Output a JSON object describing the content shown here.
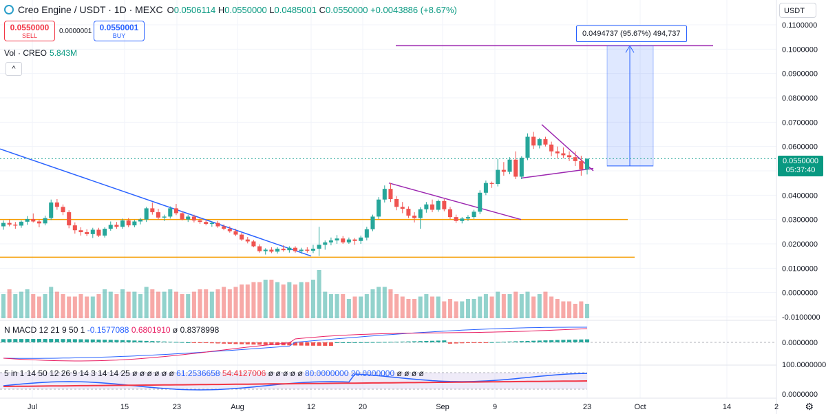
{
  "header": {
    "symbol": "Creo Engine / USDT · 1D · MEXC",
    "open_label": "O",
    "open": "0.0506114",
    "high_label": "H",
    "high": "0.0550000",
    "low_label": "L",
    "low": "0.0485001",
    "close_label": "C",
    "close": "0.0550000",
    "change": "+0.0043886 (+8.67%)"
  },
  "trade": {
    "sell_price": "0.0550000",
    "sell_label": "SELL",
    "spread": "0.0000001",
    "buy_price": "0.0550001",
    "buy_label": "BUY"
  },
  "volume": {
    "label": "Vol · CREO",
    "value": "5.843M"
  },
  "collapse_label": "^",
  "currency": "USDT",
  "measure_label": "0.0494737 (95.67%) 494,737",
  "last_price": {
    "price": "0.0550000",
    "countdown": "05:37:40"
  },
  "macd": {
    "label": "N MACD 12 21 9 50 1",
    "v1": "-0.1577088",
    "v2": "0.6801910",
    "v3": "ø 0.8378998"
  },
  "stoch": {
    "label": "5 in 1 14 50 12 26 9 14 3 14 14 25 ø ø ø ø ø ø",
    "v1": "61.2536658",
    "v2": "54.4127006",
    "mid": "ø ø ø ø ø",
    "v3": "80.0000000",
    "v4": "20.0000000",
    "tail": "ø ø ø ø"
  },
  "price_axis": [
    "0.1100000",
    "0.1000000",
    "0.0900000",
    "0.0800000",
    "0.0700000",
    "0.0600000",
    "0.0500000",
    "0.0400000",
    "0.0300000",
    "0.0200000",
    "0.0100000",
    "0.0000000",
    "-0.0100000"
  ],
  "macd_axis": [
    "0.0000000"
  ],
  "stoch_axis": [
    "100.0000000",
    "0.0000000"
  ],
  "time_axis": [
    "Jul",
    "15",
    "23",
    "Aug",
    "12",
    "20",
    "Sep",
    "9",
    "23",
    "Oct",
    "14",
    "2"
  ],
  "colors": {
    "up": "#26a69a",
    "down": "#ef5350",
    "orange": "#f59d00",
    "purple": "#9c27b0",
    "blue": "#2962ff"
  },
  "chart_data": {
    "type": "candlestick",
    "ohlc": [
      [
        0.0272,
        0.0296,
        0.0258,
        0.0286
      ],
      [
        0.0286,
        0.03,
        0.0272,
        0.0279
      ],
      [
        0.0279,
        0.029,
        0.0262,
        0.0275
      ],
      [
        0.0275,
        0.0296,
        0.0266,
        0.0291
      ],
      [
        0.0291,
        0.0314,
        0.0278,
        0.0302
      ],
      [
        0.0302,
        0.0325,
        0.0288,
        0.0292
      ],
      [
        0.0292,
        0.03,
        0.0268,
        0.0284
      ],
      [
        0.0284,
        0.0316,
        0.0276,
        0.0306
      ],
      [
        0.0306,
        0.0382,
        0.0298,
        0.037
      ],
      [
        0.037,
        0.0384,
        0.034,
        0.0352
      ],
      [
        0.0352,
        0.0362,
        0.0318,
        0.033
      ],
      [
        0.033,
        0.0338,
        0.0264,
        0.0276
      ],
      [
        0.0276,
        0.0288,
        0.0242,
        0.0256
      ],
      [
        0.0256,
        0.0268,
        0.0234,
        0.0248
      ],
      [
        0.0248,
        0.026,
        0.0232,
        0.024
      ],
      [
        0.024,
        0.0266,
        0.0224,
        0.0258
      ],
      [
        0.0258,
        0.0266,
        0.0228,
        0.0234
      ],
      [
        0.0234,
        0.0268,
        0.0226,
        0.0262
      ],
      [
        0.0262,
        0.0292,
        0.0254,
        0.0278
      ],
      [
        0.0278,
        0.029,
        0.0262,
        0.027
      ],
      [
        0.027,
        0.0304,
        0.0262,
        0.0296
      ],
      [
        0.0296,
        0.0306,
        0.0268,
        0.0276
      ],
      [
        0.0276,
        0.0298,
        0.0268,
        0.0292
      ],
      [
        0.0292,
        0.0306,
        0.028,
        0.03
      ],
      [
        0.03,
        0.0352,
        0.029,
        0.0346
      ],
      [
        0.0346,
        0.037,
        0.032,
        0.033
      ],
      [
        0.033,
        0.0344,
        0.03,
        0.0308
      ],
      [
        0.0308,
        0.032,
        0.0294,
        0.0312
      ],
      [
        0.0312,
        0.0354,
        0.0304,
        0.0346
      ],
      [
        0.0346,
        0.0364,
        0.0318,
        0.0326
      ],
      [
        0.0326,
        0.0334,
        0.0296,
        0.03
      ],
      [
        0.03,
        0.032,
        0.029,
        0.0312
      ],
      [
        0.0312,
        0.032,
        0.0288,
        0.0296
      ],
      [
        0.0296,
        0.0308,
        0.0282,
        0.029
      ],
      [
        0.029,
        0.03,
        0.0276,
        0.0282
      ],
      [
        0.0282,
        0.0292,
        0.027,
        0.0286
      ],
      [
        0.0286,
        0.0294,
        0.0266,
        0.0272
      ],
      [
        0.0272,
        0.028,
        0.0256,
        0.0262
      ],
      [
        0.0262,
        0.0272,
        0.0246,
        0.0252
      ],
      [
        0.0252,
        0.0262,
        0.0232,
        0.0238
      ],
      [
        0.0238,
        0.0246,
        0.0212,
        0.0218
      ],
      [
        0.0218,
        0.0228,
        0.0202,
        0.021
      ],
      [
        0.021,
        0.0216,
        0.0186,
        0.019
      ],
      [
        0.019,
        0.0198,
        0.0164,
        0.017
      ],
      [
        0.017,
        0.0182,
        0.0156,
        0.0176
      ],
      [
        0.0176,
        0.0186,
        0.0162,
        0.0168
      ],
      [
        0.0168,
        0.0186,
        0.016,
        0.018
      ],
      [
        0.018,
        0.0194,
        0.0168,
        0.0174
      ],
      [
        0.0174,
        0.019,
        0.0164,
        0.0184
      ],
      [
        0.0184,
        0.019,
        0.0164,
        0.017
      ],
      [
        0.017,
        0.0184,
        0.016,
        0.0176
      ],
      [
        0.0176,
        0.0186,
        0.0164,
        0.0172
      ],
      [
        0.0172,
        0.0196,
        0.0162,
        0.018
      ],
      [
        0.018,
        0.027,
        0.015,
        0.0196
      ],
      [
        0.0196,
        0.0214,
        0.0176,
        0.0206
      ],
      [
        0.0206,
        0.0226,
        0.0194,
        0.0214
      ],
      [
        0.0214,
        0.0236,
        0.02,
        0.0222
      ],
      [
        0.0222,
        0.0232,
        0.02,
        0.0206
      ],
      [
        0.0206,
        0.0226,
        0.02,
        0.0218
      ],
      [
        0.0218,
        0.0224,
        0.0196,
        0.0212
      ],
      [
        0.0212,
        0.0234,
        0.02,
        0.0226
      ],
      [
        0.0226,
        0.027,
        0.0214,
        0.026
      ],
      [
        0.026,
        0.032,
        0.0252,
        0.0312
      ],
      [
        0.0312,
        0.0392,
        0.0302,
        0.0382
      ],
      [
        0.0382,
        0.044,
        0.037,
        0.0426
      ],
      [
        0.0426,
        0.045,
        0.0372,
        0.0384
      ],
      [
        0.0384,
        0.0396,
        0.0338,
        0.0352
      ],
      [
        0.0352,
        0.0372,
        0.0326,
        0.0344
      ],
      [
        0.0344,
        0.0354,
        0.0306,
        0.0316
      ],
      [
        0.0316,
        0.033,
        0.0288,
        0.0306
      ],
      [
        0.0306,
        0.035,
        0.0262,
        0.0342
      ],
      [
        0.0342,
        0.0372,
        0.0328,
        0.0362
      ],
      [
        0.0362,
        0.0382,
        0.033,
        0.034
      ],
      [
        0.034,
        0.0382,
        0.0332,
        0.0376
      ],
      [
        0.0376,
        0.0384,
        0.0334,
        0.0342
      ],
      [
        0.0342,
        0.0352,
        0.0302,
        0.031
      ],
      [
        0.031,
        0.032,
        0.0286,
        0.0294
      ],
      [
        0.0294,
        0.031,
        0.0284,
        0.0304
      ],
      [
        0.0304,
        0.0318,
        0.0294,
        0.031
      ],
      [
        0.031,
        0.034,
        0.0302,
        0.0332
      ],
      [
        0.0332,
        0.042,
        0.0322,
        0.041
      ],
      [
        0.041,
        0.046,
        0.04,
        0.045
      ],
      [
        0.045,
        0.0456,
        0.043,
        0.0446
      ],
      [
        0.0446,
        0.055,
        0.0436,
        0.0504
      ],
      [
        0.0504,
        0.0536,
        0.048,
        0.0496
      ],
      [
        0.0496,
        0.0556,
        0.0486,
        0.0546
      ],
      [
        0.0546,
        0.058,
        0.0466,
        0.0476
      ],
      [
        0.0476,
        0.056,
        0.0466,
        0.0554
      ],
      [
        0.0554,
        0.0654,
        0.0544,
        0.064
      ],
      [
        0.064,
        0.066,
        0.059,
        0.0604
      ],
      [
        0.0604,
        0.0636,
        0.0592,
        0.063
      ],
      [
        0.063,
        0.064,
        0.06,
        0.0608
      ],
      [
        0.0608,
        0.062,
        0.056,
        0.058
      ],
      [
        0.058,
        0.06,
        0.0552,
        0.0572
      ],
      [
        0.0572,
        0.0596,
        0.0552,
        0.0564
      ],
      [
        0.0564,
        0.058,
        0.054,
        0.0556
      ],
      [
        0.0556,
        0.058,
        0.052,
        0.054
      ],
      [
        0.054,
        0.0562,
        0.048,
        0.0506
      ],
      [
        0.0506,
        0.055,
        0.0485,
        0.055
      ]
    ],
    "volume_up": [
      true,
      false,
      true,
      true,
      true,
      false,
      false,
      true,
      true,
      false,
      false,
      false,
      false,
      false,
      false,
      true,
      false,
      true,
      true,
      false,
      true,
      false,
      true,
      true,
      true,
      false,
      false,
      true,
      true,
      false,
      false,
      true,
      false,
      false,
      false,
      true,
      false,
      false,
      false,
      false,
      false,
      false,
      false,
      false,
      true,
      false,
      true,
      false,
      true,
      false,
      true,
      false,
      true,
      true,
      true,
      true,
      true,
      false,
      true,
      false,
      true,
      true,
      true,
      true,
      true,
      false,
      false,
      false,
      false,
      false,
      true,
      true,
      false,
      true,
      false,
      false,
      false,
      true,
      true,
      true,
      true,
      true,
      false,
      true,
      false,
      true,
      false,
      true,
      true,
      false,
      true,
      false,
      false,
      false,
      false,
      false,
      false,
      false,
      true
    ],
    "volume": [
      0.5,
      0.6,
      0.5,
      0.55,
      0.6,
      0.5,
      0.45,
      0.5,
      0.65,
      0.55,
      0.5,
      0.45,
      0.45,
      0.5,
      0.45,
      0.45,
      0.5,
      0.6,
      0.55,
      0.5,
      0.6,
      0.55,
      0.55,
      0.5,
      0.65,
      0.6,
      0.55,
      0.55,
      0.6,
      0.55,
      0.5,
      0.5,
      0.55,
      0.6,
      0.6,
      0.55,
      0.6,
      0.65,
      0.6,
      0.65,
      0.7,
      0.7,
      0.75,
      0.75,
      0.8,
      0.8,
      0.75,
      0.7,
      0.75,
      0.7,
      0.75,
      0.75,
      0.8,
      1.0,
      0.55,
      0.5,
      0.5,
      0.5,
      0.4,
      0.45,
      0.45,
      0.5,
      0.6,
      0.65,
      0.65,
      0.6,
      0.5,
      0.45,
      0.4,
      0.4,
      0.45,
      0.5,
      0.45,
      0.45,
      0.35,
      0.4,
      0.35,
      0.35,
      0.4,
      0.4,
      0.45,
      0.5,
      0.45,
      0.55,
      0.5,
      0.5,
      0.55,
      0.5,
      0.55,
      0.45,
      0.5,
      0.55,
      0.45,
      0.4,
      0.35,
      0.35,
      0.3,
      0.35,
      0.3
    ],
    "price_levels": {
      "resistance": 0.03,
      "support": 0.0145,
      "target": 0.1014,
      "entry": 0.052
    },
    "ylim": [
      -0.01,
      0.11
    ]
  }
}
